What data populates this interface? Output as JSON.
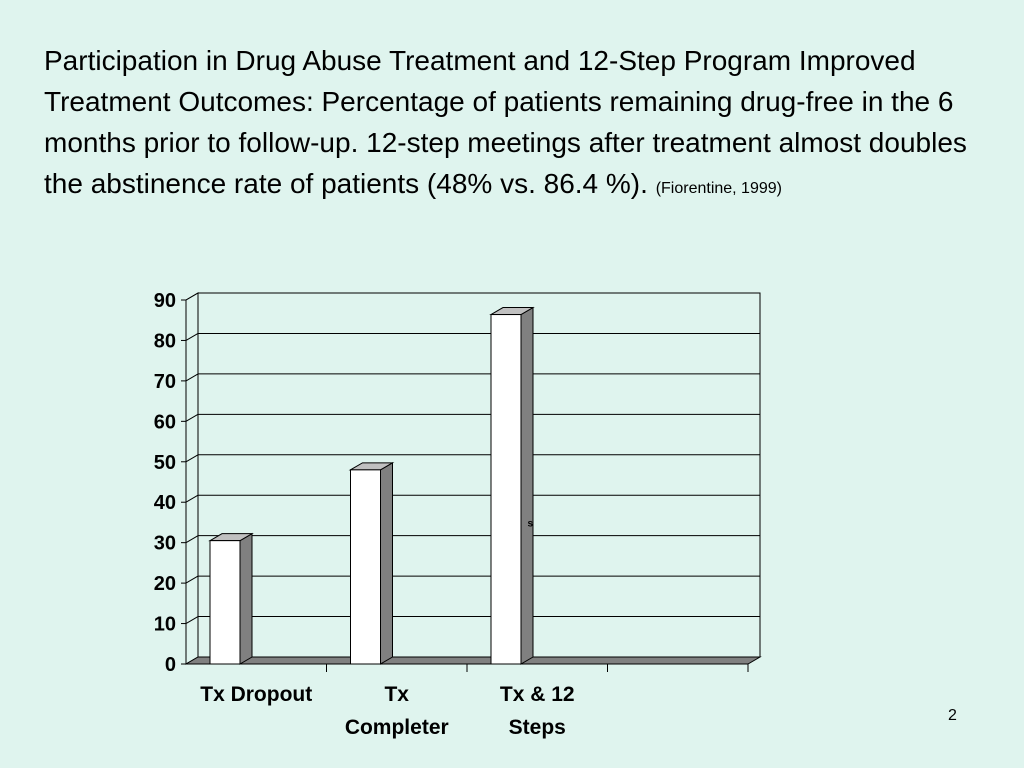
{
  "slide": {
    "title": "Participation in Drug Abuse Treatment and 12-Step Program Improved Treatment Outcomes: Percentage of patients remaining drug-free in the 6 months prior to follow-up. 12-step meetings after treatment almost doubles the abstinence rate of patients (48% vs. 86.4 %).",
    "citation": "(Fiorentine, 1999)",
    "page_number": "2"
  },
  "chart_data": {
    "type": "bar",
    "categories": [
      [
        "Tx Dropout"
      ],
      [
        "Tx",
        "Completer"
      ],
      [
        "Tx & 12",
        "Steps"
      ],
      [
        ""
      ]
    ],
    "values": [
      30.5,
      48,
      86.4,
      null
    ],
    "ylim": [
      0,
      90
    ],
    "yticks": [
      0,
      10,
      20,
      30,
      40,
      50,
      60,
      70,
      80,
      90
    ],
    "grid": true,
    "legend": "none",
    "style": "3d-column",
    "annotations": [
      {
        "text": "s",
        "x": 2.45,
        "y": 34
      }
    ],
    "colors": {
      "bar_face": "#ffffff",
      "bar_side": "#808080",
      "bar_top": "#c0c0c0",
      "floor": "#808080",
      "grid": "#000000",
      "plot_background": "#dff4ee"
    }
  }
}
